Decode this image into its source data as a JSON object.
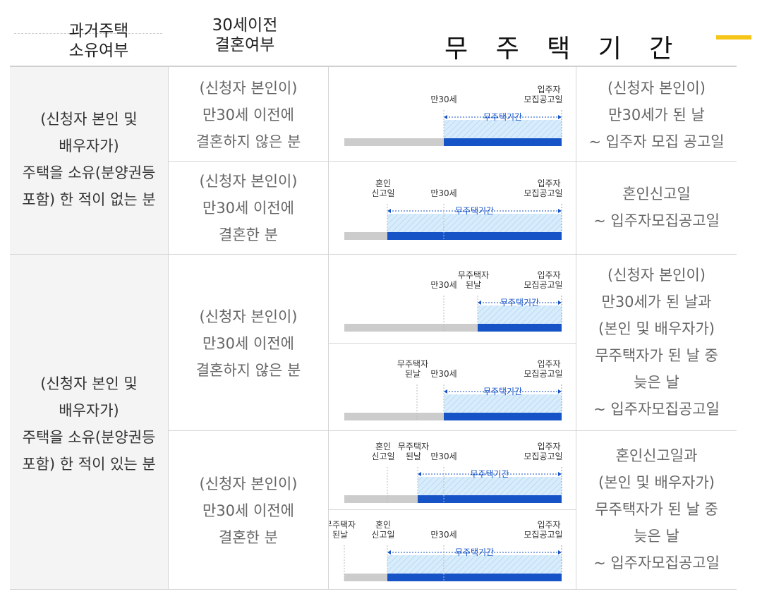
{
  "header": {
    "col1": "과거주택\n소유여부",
    "col2": "30세이전\n결혼여부",
    "col3": "무 주 택 기 간"
  },
  "groups": [
    {
      "label": "(신청자 본인 및\n배우자가)\n주택을 소유(분양권등\n포함) 한 적이 없는 분"
    },
    {
      "label": "(신청자 본인 및\n배우자가)\n주택을 소유(분양권등\n포함) 한 적이 있는 분"
    }
  ],
  "rows": [
    {
      "marriage": "(신청자 본인이)\n만30세 이전에\n결혼하지 않은 분",
      "period": "(신청자 본인이)\n만30세가 된 날\n~ 입주자 모집 공고일"
    },
    {
      "marriage": "(신청자 본인이)\n만30세 이전에\n결혼한 분",
      "period": "혼인신고일\n~ 입주자모집공고일"
    },
    {
      "marriage": "(신청자 본인이)\n만30세 이전에\n결혼하지 않은 분",
      "period": "(신청자 본인이)\n만30세가 된 날과\n(본인 및 배우자가)\n무주택자가 된 날 중\n늦은 날\n~ 입주자모집공고일"
    },
    {
      "marriage": "(신청자 본인이)\n만30세 이전에\n결혼한 분",
      "period": "혼인신고일과\n(본인 및 배우자가)\n무주택자가 된 날 중\n늦은 날\n~ 입주자모집공고일"
    }
  ],
  "labels": {
    "age30": "만30세",
    "notice1": "입주자",
    "notice2": "모집공고일",
    "marry1": "혼인",
    "marry2": "신고일",
    "house1": "무주택자",
    "house2": "된날",
    "period": "무주택기간"
  },
  "colors": {
    "bar_blue": "#1553c7",
    "bar_gray": "#cccccc",
    "hatch": "#d8ecfb",
    "accent": "#f5c518"
  }
}
